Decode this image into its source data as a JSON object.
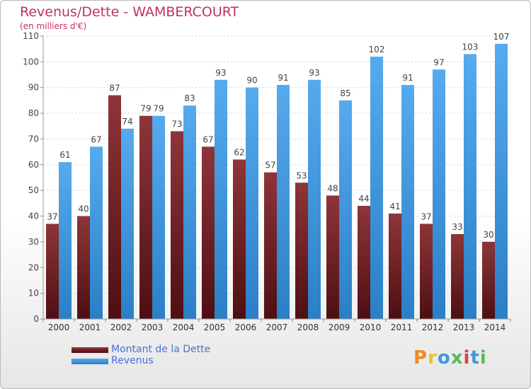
{
  "chart_data": {
    "type": "bar",
    "title": "Revenus/Dette - WAMBERCOURT",
    "subtitle": "(en milliers d'€)",
    "categories": [
      "2000",
      "2001",
      "2002",
      "2003",
      "2004",
      "2005",
      "2006",
      "2007",
      "2008",
      "2009",
      "2010",
      "2011",
      "2012",
      "2013",
      "2014"
    ],
    "series": [
      {
        "name": "Montant de la Dette",
        "values": [
          37,
          40,
          87,
          79,
          73,
          67,
          62,
          57,
          53,
          48,
          44,
          41,
          37,
          33,
          30
        ],
        "color": "#7b2a2f"
      },
      {
        "name": "Revenus",
        "values": [
          61,
          67,
          74,
          79,
          83,
          93,
          90,
          91,
          93,
          85,
          102,
          91,
          97,
          103,
          107
        ],
        "color": "#3f97df"
      }
    ],
    "ylim": [
      0,
      110
    ],
    "yticks": [
      0,
      10,
      20,
      30,
      40,
      50,
      60,
      70,
      80,
      90,
      100,
      110
    ],
    "grid": true,
    "legend": "bottom-left"
  },
  "logo": {
    "text": "Proxiti",
    "icon": "proxiti-logo"
  }
}
